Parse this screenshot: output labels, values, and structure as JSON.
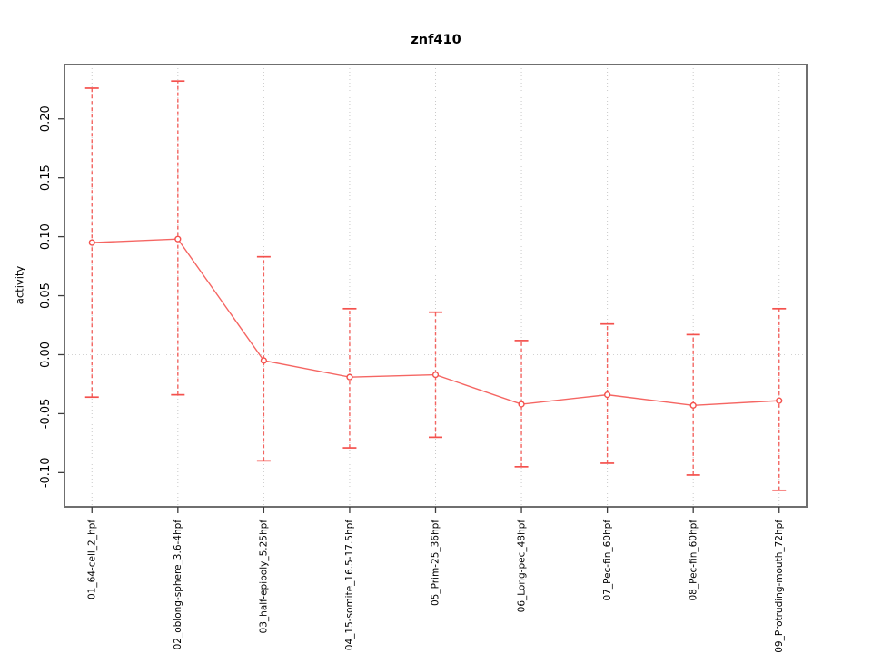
{
  "chart_data": {
    "type": "line",
    "title": "znf410",
    "ylabel": "activity",
    "xlabel": "",
    "legend": "none",
    "marker": "open-circle",
    "error_bars": "dashed vertical line with solid horizontal caps per point",
    "grid": {
      "vertical_dotted_line_per_category": true,
      "horizontal_dotted_line_at_zero": true,
      "other_horizontal_gridlines": false
    },
    "categories": [
      "01_64-cell_2_hpf",
      "02_oblong-sphere_3.6-4hpf",
      "03_half-epiboly_5.25hpf",
      "04_15-somite_16.5-17.5hpf",
      "05_Prim-25_36hpf",
      "06_Long-pec_48hpf",
      "07_Pec-fin_60hpf",
      "08_Pec-fin_60hpf",
      "09_Protruding-mouth_72hpf"
    ],
    "series": [
      {
        "name": "znf410 activity",
        "values": [
          0.095,
          0.098,
          -0.005,
          -0.019,
          -0.017,
          -0.042,
          -0.034,
          -0.043,
          -0.039
        ],
        "lower": [
          -0.036,
          -0.034,
          -0.09,
          -0.079,
          -0.07,
          -0.095,
          -0.092,
          -0.102,
          -0.115
        ],
        "upper": [
          0.226,
          0.232,
          0.083,
          0.039,
          0.036,
          0.012,
          0.026,
          0.017,
          0.039
        ]
      }
    ],
    "ytick_values": [
      -0.1,
      -0.05,
      0.0,
      0.05,
      0.1,
      0.15,
      0.2
    ],
    "ytick_labels": [
      "-0.10",
      "-0.05",
      "0.00",
      "0.05",
      "0.10",
      "0.15",
      "0.20"
    ],
    "ylim": [
      -0.129,
      0.246
    ],
    "xlim": [
      0.68,
      9.32
    ],
    "colors": {
      "series": "#f4514d",
      "grid": "#c9c9c9",
      "zero_line": "#d2d2d2",
      "border": "#6f6f6f",
      "tick": "#3c3c3c",
      "text": "#000000",
      "background": "#ffffff"
    }
  }
}
